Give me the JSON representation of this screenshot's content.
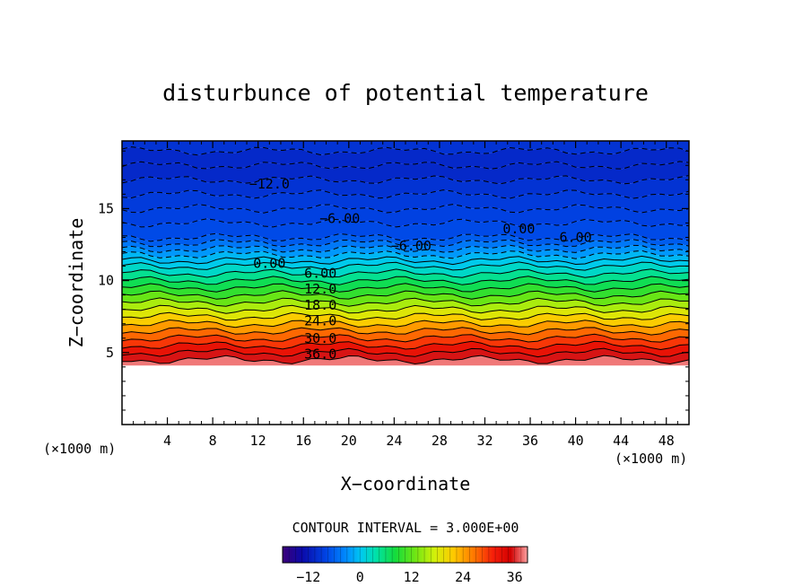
{
  "chart_data": {
    "type": "heatmap",
    "title": "disturbunce of potential temperature",
    "xlabel": "X−coordinate",
    "ylabel": "Z−coordinate",
    "x_unit": "(×1000 m)",
    "z_unit": "(×1000 m)",
    "xlim": [
      0,
      50
    ],
    "ylim": [
      0,
      19.7
    ],
    "x_ticks": [
      4,
      8,
      12,
      16,
      20,
      24,
      28,
      32,
      36,
      40,
      44,
      48
    ],
    "y_ticks": [
      5,
      10,
      15
    ],
    "x_tick_labels": [
      "4",
      "8",
      "12",
      "16",
      "20",
      "24",
      "28",
      "32",
      "36",
      "40",
      "44",
      "48"
    ],
    "y_tick_labels": [
      "5",
      "10",
      "15"
    ],
    "contour_interval_label": "CONTOUR INTERVAL = 3.000E+00",
    "contour_interval": 3.0,
    "colorbar": {
      "min": -18,
      "max": 39,
      "tick_values": [
        -12,
        0,
        12,
        24,
        36
      ],
      "tick_labels": [
        "−12",
        "0",
        "12",
        "24",
        "36"
      ]
    },
    "contour_labels": [
      {
        "text": "−12.0",
        "x": 13.0,
        "z": 16.7
      },
      {
        "text": "−6.00",
        "x": 19.2,
        "z": 14.3
      },
      {
        "text": "−6.00",
        "x": 25.5,
        "z": 12.4
      },
      {
        "text": "0.00",
        "x": 35.0,
        "z": 13.6
      },
      {
        "text": "6.00",
        "x": 40.0,
        "z": 13.0
      },
      {
        "text": "0.00",
        "x": 13.0,
        "z": 11.2
      },
      {
        "text": "6.00",
        "x": 17.5,
        "z": 10.5
      },
      {
        "text": "12.0",
        "x": 17.5,
        "z": 9.4
      },
      {
        "text": "18.0",
        "x": 17.5,
        "z": 8.3
      },
      {
        "text": "24.0",
        "x": 17.5,
        "z": 7.2
      },
      {
        "text": "30.0",
        "x": 17.5,
        "z": 6.0
      },
      {
        "text": "36.0",
        "x": 17.5,
        "z": 4.9
      }
    ],
    "profile": {
      "z": [
        4.1,
        4.5,
        5.0,
        5.5,
        6.0,
        6.5,
        7.0,
        7.5,
        8.0,
        8.5,
        9.0,
        9.5,
        10.0,
        10.5,
        11.0,
        11.4,
        11.8,
        12.2,
        12.6,
        13.0,
        14.0,
        15.0,
        16.0,
        17.0,
        18.0,
        19.0,
        19.7
      ],
      "value": [
        39,
        37,
        34,
        31,
        28.5,
        26,
        23,
        20,
        17,
        14,
        11,
        8.5,
        6,
        3.5,
        1,
        0,
        -1.5,
        -3.5,
        -5.5,
        -7,
        -8,
        -8.5,
        -9,
        -10,
        -11,
        -10,
        -9
      ]
    }
  }
}
